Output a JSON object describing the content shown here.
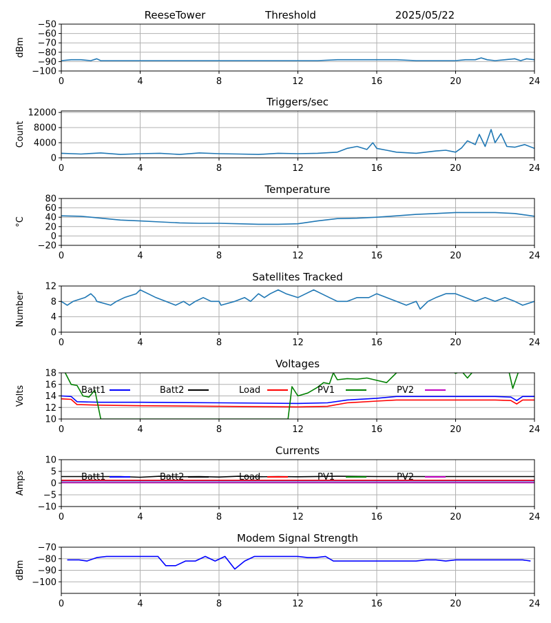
{
  "header": {
    "station": "ReeseTower",
    "panel1_title": "Threshold",
    "date": "2025/05/22"
  },
  "chart_data": [
    {
      "type": "line",
      "title": "Threshold",
      "xlabel": "",
      "ylabel": "dBm",
      "xlim": [
        0,
        24
      ],
      "ylim": [
        -100,
        -50
      ],
      "xticks": [
        0,
        4,
        8,
        12,
        16,
        20,
        24
      ],
      "yticks": [
        -100,
        -90,
        -80,
        -70,
        -60,
        -50
      ],
      "grid": true,
      "series": [
        {
          "color": "#1f77b4",
          "x": [
            0,
            0.5,
            1,
            1.5,
            1.8,
            2,
            3,
            4,
            6,
            8,
            10,
            12,
            13,
            14,
            15,
            16,
            17,
            18,
            19,
            20,
            20.5,
            21,
            21.3,
            21.6,
            22,
            22.5,
            23,
            23.3,
            23.6,
            24
          ],
          "values": [
            -89,
            -88,
            -88,
            -89,
            -87,
            -89,
            -89,
            -89,
            -89,
            -89,
            -89,
            -89,
            -89,
            -88,
            -88,
            -88,
            -88,
            -89,
            -89,
            -89,
            -88,
            -88,
            -86,
            -88,
            -89,
            -88,
            -87,
            -89,
            -87,
            -88
          ]
        }
      ]
    },
    {
      "type": "line",
      "title": "Triggers/sec",
      "xlabel": "",
      "ylabel": "Count",
      "xlim": [
        0,
        24
      ],
      "ylim": [
        0,
        12400
      ],
      "xticks": [
        0,
        4,
        8,
        12,
        16,
        20,
        24
      ],
      "yticks": [
        0,
        4000,
        8000,
        12000
      ],
      "grid": true,
      "series": [
        {
          "color": "#1f77b4",
          "x": [
            0,
            1,
            2,
            3,
            4,
            5,
            6,
            7,
            8,
            9,
            10,
            11,
            12,
            13,
            14,
            14.5,
            15,
            15.5,
            15.8,
            16,
            16.5,
            17,
            18,
            19,
            19.5,
            20,
            20.3,
            20.6,
            21,
            21.2,
            21.5,
            21.8,
            22,
            22.3,
            22.6,
            23,
            23.5,
            24
          ],
          "values": [
            1200,
            1000,
            1300,
            900,
            1100,
            1200,
            900,
            1300,
            1100,
            1000,
            900,
            1200,
            1100,
            1200,
            1500,
            2500,
            3000,
            2200,
            4000,
            2500,
            2000,
            1500,
            1200,
            1800,
            2000,
            1500,
            2600,
            4500,
            3500,
            6200,
            3000,
            7500,
            4000,
            6400,
            3000,
            2800,
            3500,
            2500
          ]
        }
      ]
    },
    {
      "type": "line",
      "title": "Temperature",
      "xlabel": "",
      "ylabel": "°C",
      "xlim": [
        0,
        24
      ],
      "ylim": [
        -20,
        80
      ],
      "xticks": [
        0,
        4,
        8,
        12,
        16,
        20,
        24
      ],
      "yticks": [
        -20,
        0,
        20,
        40,
        60,
        80
      ],
      "grid": true,
      "series": [
        {
          "color": "#1f77b4",
          "x": [
            0,
            1,
            2,
            3,
            4,
            5,
            6,
            7,
            8,
            9,
            10,
            11,
            12,
            13,
            14,
            15,
            16,
            17,
            18,
            19,
            20,
            21,
            22,
            23,
            23.5,
            24
          ],
          "values": [
            43,
            42,
            38,
            34,
            32,
            30,
            28,
            27,
            27,
            26,
            25,
            25,
            26,
            32,
            37,
            38,
            40,
            43,
            46,
            48,
            50,
            50,
            50,
            48,
            45,
            42
          ]
        }
      ]
    },
    {
      "type": "line",
      "title": "Satellites Tracked",
      "xlabel": "",
      "ylabel": "Number",
      "xlim": [
        0,
        24
      ],
      "ylim": [
        0,
        12
      ],
      "xticks": [
        0,
        4,
        8,
        12,
        16,
        20,
        24
      ],
      "yticks": [
        0,
        4,
        8,
        12
      ],
      "grid": true,
      "series": [
        {
          "color": "#1f77b4",
          "x": [
            0,
            0.3,
            0.6,
            1.2,
            1.5,
            1.7,
            1.8,
            2.5,
            2.8,
            3.2,
            3.8,
            4,
            4.4,
            4.8,
            5.3,
            5.8,
            6.2,
            6.5,
            6.8,
            7.2,
            7.6,
            8,
            8.1,
            8.8,
            9.3,
            9.6,
            10,
            10.3,
            10.6,
            11,
            11.4,
            12,
            12.4,
            12.8,
            13.2,
            13.6,
            14,
            14.5,
            15,
            15.6,
            16,
            16.5,
            17,
            17.5,
            18,
            18.2,
            18.6,
            19,
            19.5,
            20,
            20.5,
            21,
            21.5,
            22,
            22.5,
            23,
            23.4,
            24
          ],
          "values": [
            8,
            7,
            8,
            9,
            10,
            9,
            8,
            7,
            8,
            9,
            10,
            11,
            10,
            9,
            8,
            7,
            8,
            7,
            8,
            9,
            8,
            8,
            7,
            8,
            9,
            8,
            10,
            9,
            10,
            11,
            10,
            9,
            10,
            11,
            10,
            9,
            8,
            8,
            9,
            9,
            10,
            9,
            8,
            7,
            8,
            6,
            8,
            9,
            10,
            10,
            9,
            8,
            9,
            8,
            9,
            8,
            7,
            8
          ]
        }
      ]
    },
    {
      "type": "line",
      "title": "Voltages",
      "xlabel": "",
      "ylabel": "Volts",
      "xlim": [
        0,
        24
      ],
      "ylim": [
        10,
        18
      ],
      "xticks": [
        0,
        4,
        8,
        12,
        16,
        20,
        24
      ],
      "yticks": [
        10,
        12,
        14,
        16,
        18
      ],
      "grid": true,
      "legend": "top, inline",
      "series": [
        {
          "name": "Batt1",
          "color": "#0000ff",
          "x": [
            0,
            0.5,
            0.8,
            2,
            4,
            8,
            12,
            13.5,
            14.5,
            16,
            17,
            22,
            22.8,
            23.1,
            23.4,
            24
          ],
          "values": [
            14,
            13.9,
            13,
            12.9,
            12.9,
            12.8,
            12.7,
            12.8,
            13.3,
            13.6,
            13.9,
            13.9,
            13.8,
            13.2,
            13.9,
            13.9
          ]
        },
        {
          "name": "Batt2",
          "color": "#000000",
          "x": [],
          "values": []
        },
        {
          "name": "Load",
          "color": "#ff0000",
          "x": [
            0,
            0.5,
            0.8,
            2,
            4,
            8,
            12,
            13.5,
            14.5,
            16,
            17,
            22,
            22.8,
            23.1,
            23.4,
            24
          ],
          "values": [
            13.5,
            13.4,
            12.5,
            12.4,
            12.3,
            12.2,
            12.1,
            12.2,
            12.8,
            13.1,
            13.3,
            13.3,
            13.2,
            12.6,
            13.3,
            13.3
          ]
        },
        {
          "name": "PV1",
          "color": "#008000",
          "x": [
            0.2,
            0.5,
            0.8,
            1.1,
            1.4,
            1.7,
            2,
            11.5,
            11.7,
            12,
            12.5,
            13,
            13.3,
            13.6,
            13.8,
            14,
            14.5,
            15,
            15.5,
            16,
            16.5,
            17,
            17.2,
            19.8,
            20,
            20.3,
            20.6,
            20.9,
            22.7,
            22.9,
            23.2
          ],
          "values": [
            18,
            16,
            15.8,
            14,
            13.8,
            15,
            10,
            10,
            15.6,
            14,
            14.5,
            15.5,
            16.3,
            16.1,
            18,
            16.8,
            17,
            16.9,
            17.1,
            16.7,
            16.3,
            18,
            18.3,
            18.3,
            17.9,
            18.3,
            17.1,
            18.3,
            18.3,
            15.3,
            18.3
          ]
        },
        {
          "name": "PV2",
          "color": "#bf00bf",
          "x": [],
          "values": []
        }
      ]
    },
    {
      "type": "line",
      "title": "Currents",
      "xlabel": "",
      "ylabel": "Amps",
      "xlim": [
        0,
        24
      ],
      "ylim": [
        -10,
        10
      ],
      "xticks": [
        0,
        4,
        8,
        12,
        16,
        20,
        24
      ],
      "yticks": [
        -10,
        -5,
        0,
        5,
        10
      ],
      "grid": true,
      "legend": "top, inline",
      "series": [
        {
          "name": "Batt1",
          "color": "#0000ff",
          "x": [
            0,
            24
          ],
          "values": [
            1.0,
            1.0
          ]
        },
        {
          "name": "Batt2",
          "color": "#000000",
          "x": [
            0,
            3,
            4,
            5,
            6,
            7,
            8,
            9,
            10,
            11,
            12,
            14,
            16,
            24
          ],
          "values": [
            2.8,
            2.8,
            2.5,
            2.9,
            2.7,
            2.8,
            2.6,
            2.9,
            2.7,
            2.8,
            2.7,
            2.9,
            2.8,
            2.8
          ]
        },
        {
          "name": "Load",
          "color": "#ff0000",
          "x": [
            0,
            24
          ],
          "values": [
            1.2,
            1.2
          ]
        },
        {
          "name": "PV1",
          "color": "#008000",
          "x": [
            0,
            24
          ],
          "values": [
            0.3,
            0.3
          ]
        },
        {
          "name": "PV2",
          "color": "#bf00bf",
          "x": [
            0,
            24
          ],
          "values": [
            0.2,
            0.2
          ]
        }
      ]
    },
    {
      "type": "line",
      "title": "Modem Signal Strength",
      "xlabel": "",
      "ylabel": "dBm",
      "xlim": [
        0,
        24
      ],
      "ylim": [
        -110,
        -70
      ],
      "xticks": [
        0,
        4,
        8,
        12,
        16,
        20,
        24
      ],
      "yticks": [
        -100,
        -90,
        -80,
        -70
      ],
      "grid": true,
      "series": [
        {
          "color": "#0000ff",
          "x": [
            0.3,
            0.9,
            1.3,
            1.8,
            2.3,
            4.9,
            5.3,
            5.8,
            6.3,
            6.8,
            7.3,
            7.8,
            8.3,
            8.8,
            9.3,
            9.8,
            12,
            12.5,
            12.9,
            13.4,
            13.8,
            18,
            18.5,
            19,
            19.5,
            20,
            23,
            23.4,
            23.8
          ],
          "values": [
            -81,
            -81,
            -82,
            -79,
            -78,
            -78,
            -86,
            -86,
            -82,
            -82,
            -78,
            -82,
            -78,
            -89,
            -82,
            -78,
            -78,
            -79,
            -79,
            -78,
            -82,
            -82,
            -81,
            -81,
            -82,
            -81,
            -81,
            -81,
            -82
          ]
        }
      ]
    }
  ]
}
